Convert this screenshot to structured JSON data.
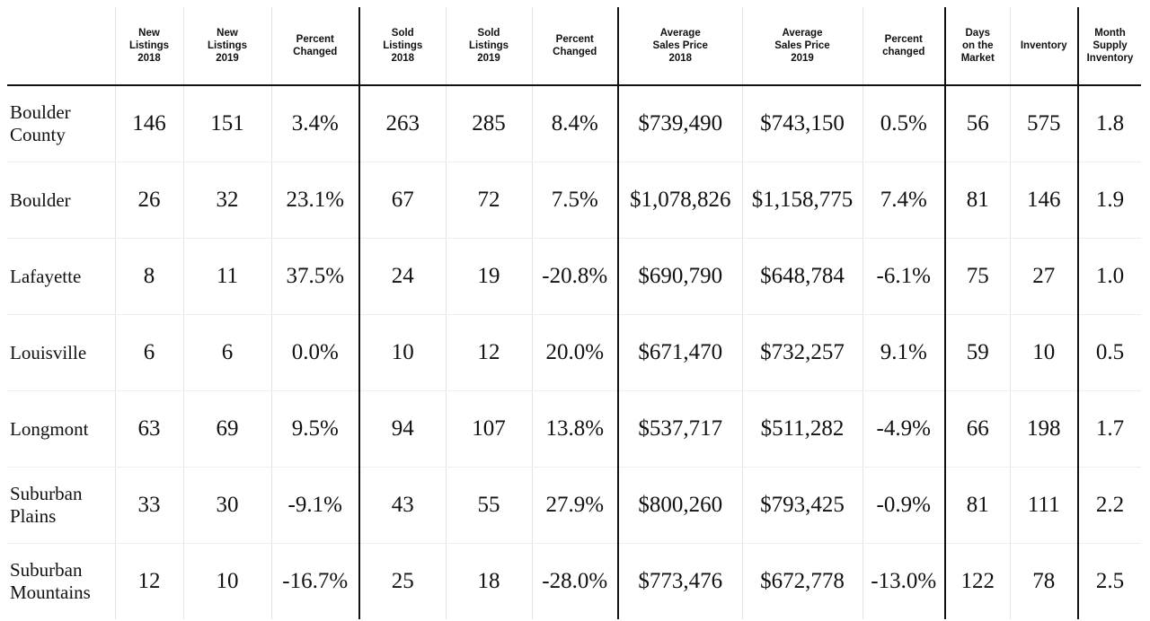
{
  "columns": [
    [
      "New",
      "Listings",
      "2018"
    ],
    [
      "New",
      "Listings",
      "2019"
    ],
    [
      "Percent",
      "Changed"
    ],
    [
      "Sold",
      "Listings",
      "2018"
    ],
    [
      "Sold",
      "Listings",
      "2019"
    ],
    [
      "Percent",
      "Changed"
    ],
    [
      "Average",
      "Sales Price",
      "2018"
    ],
    [
      "Average",
      "Sales Price",
      "2019"
    ],
    [
      "Percent",
      "changed"
    ],
    [
      "Days",
      "on the",
      "Market"
    ],
    [
      "Inventory"
    ],
    [
      "Month",
      "Supply",
      "Inventory"
    ]
  ],
  "rows": [
    {
      "name": [
        "Boulder",
        "County"
      ],
      "values": [
        "146",
        "151",
        "3.4%",
        "263",
        "285",
        "8.4%",
        "$739,490",
        "$743,150",
        "0.5%",
        "56",
        "575",
        "1.8"
      ]
    },
    {
      "name": [
        "Boulder"
      ],
      "values": [
        "26",
        "32",
        "23.1%",
        "67",
        "72",
        "7.5%",
        "$1,078,826",
        "$1,158,775",
        "7.4%",
        "81",
        "146",
        "1.9"
      ]
    },
    {
      "name": [
        "Lafayette"
      ],
      "values": [
        "8",
        "11",
        "37.5%",
        "24",
        "19",
        "-20.8%",
        "$690,790",
        "$648,784",
        "-6.1%",
        "75",
        "27",
        "1.0"
      ]
    },
    {
      "name": [
        "Louisville"
      ],
      "values": [
        "6",
        "6",
        "0.0%",
        "10",
        "12",
        "20.0%",
        "$671,470",
        "$732,257",
        "9.1%",
        "59",
        "10",
        "0.5"
      ]
    },
    {
      "name": [
        "Longmont"
      ],
      "values": [
        "63",
        "69",
        "9.5%",
        "94",
        "107",
        "13.8%",
        "$537,717",
        "$511,282",
        "-4.9%",
        "66",
        "198",
        "1.7"
      ]
    },
    {
      "name": [
        "Suburban",
        "Plains"
      ],
      "values": [
        "33",
        "30",
        "-9.1%",
        "43",
        "55",
        "27.9%",
        "$800,260",
        "$793,425",
        "-0.9%",
        "81",
        "111",
        "2.2"
      ]
    },
    {
      "name": [
        "Suburban",
        "Mountains"
      ],
      "values": [
        "12",
        "10",
        "-16.7%",
        "25",
        "18",
        "-28.0%",
        "$773,476",
        "$672,778",
        "-13.0%",
        "122",
        "78",
        "2.5"
      ]
    }
  ]
}
